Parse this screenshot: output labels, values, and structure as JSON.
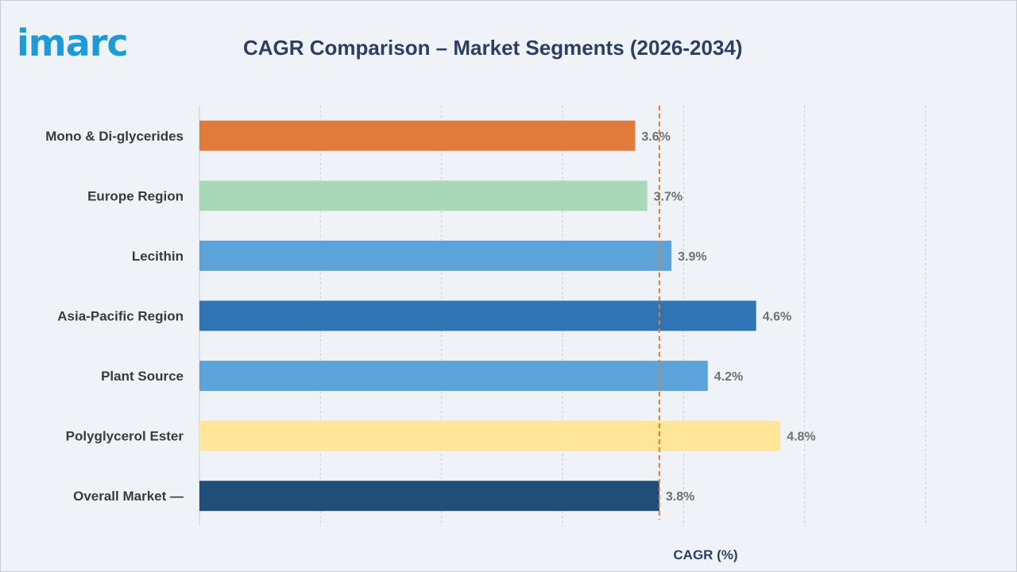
{
  "header": {
    "logo_text": "imarc",
    "title": "CAGR Comparison – Market Segments (2026-2034)"
  },
  "chart_data": {
    "type": "bar",
    "orientation": "horizontal",
    "title": "CAGR Comparison – Market Segments (2026-2034)",
    "xlabel": "CAGR (%)",
    "ylabel": "",
    "xlim": [
      0,
      6
    ],
    "grid": "vertical, dashed",
    "categories": [
      "Mono & Di-glycerides",
      "Europe Region",
      "Lecithin",
      "Asia-Pacific Region",
      "Plant Source",
      "Polyglycerol Ester",
      "Overall Market —"
    ],
    "values": [
      3.6,
      3.7,
      3.9,
      4.6,
      4.2,
      4.8,
      3.8
    ],
    "value_labels": [
      "3.6%",
      "3.7%",
      "3.9%",
      "4.6%",
      "4.2%",
      "4.8%",
      "3.8%"
    ],
    "colors": [
      "#e07b39",
      "#a9d8b8",
      "#5ba3d9",
      "#2e75b6",
      "#5ba3d9",
      "#ffe699",
      "#1f4e79"
    ],
    "reference_line": {
      "value": 3.8,
      "color": "#e07b39",
      "style": "dashed"
    }
  }
}
